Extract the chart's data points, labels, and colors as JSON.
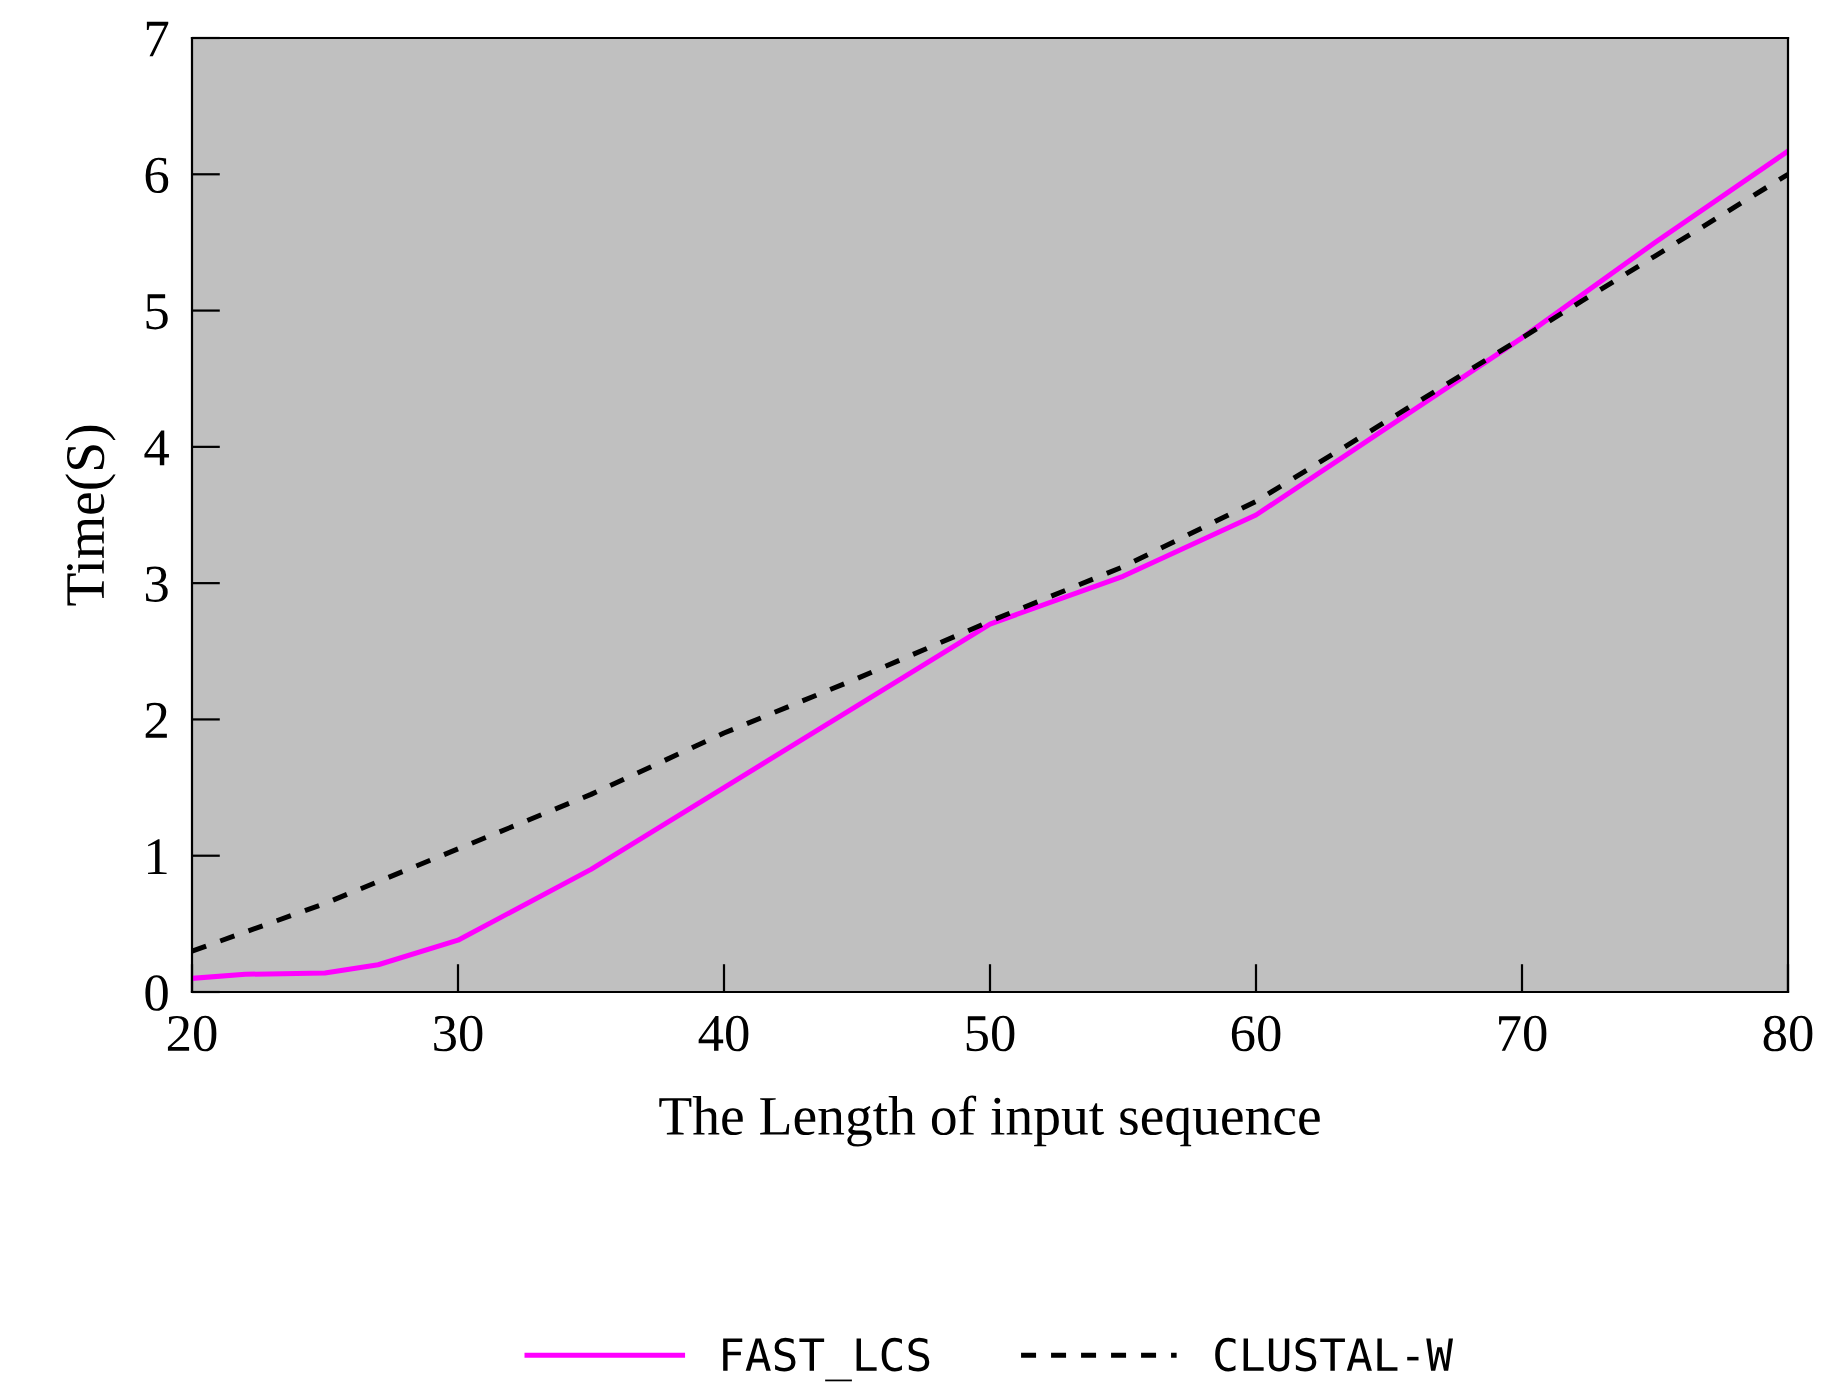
{
  "chart_data": {
    "type": "line",
    "xlabel": "The Length of input sequence",
    "ylabel": "Time(S)",
    "xlim": [
      20,
      80
    ],
    "xticks": [
      20,
      30,
      40,
      50,
      60,
      70,
      80
    ],
    "ylim": [
      0,
      7
    ],
    "yticks": [
      0,
      1,
      2,
      3,
      4,
      5,
      6,
      7
    ],
    "grid": false,
    "legend": "bottom",
    "marker": "none",
    "series": [
      {
        "name": "FAST_LCS",
        "color": "#ff00ff",
        "line_style": "solid",
        "x": [
          20,
          22,
          25,
          27,
          30,
          35,
          40,
          45,
          50,
          55,
          60,
          65,
          70,
          75,
          80
        ],
        "values": [
          0.1,
          0.13,
          0.14,
          0.2,
          0.38,
          0.9,
          1.5,
          2.1,
          2.7,
          3.05,
          3.5,
          4.15,
          4.8,
          5.5,
          6.17
        ]
      },
      {
        "name": "CLUSTAL-W",
        "color": "#000000",
        "line_style": "dashed",
        "x": [
          20,
          25,
          30,
          35,
          40,
          45,
          50,
          55,
          60,
          65,
          70,
          75,
          80
        ],
        "values": [
          0.3,
          0.65,
          1.05,
          1.45,
          1.9,
          2.3,
          2.72,
          3.12,
          3.6,
          4.2,
          4.8,
          5.4,
          6.0
        ]
      }
    ]
  }
}
